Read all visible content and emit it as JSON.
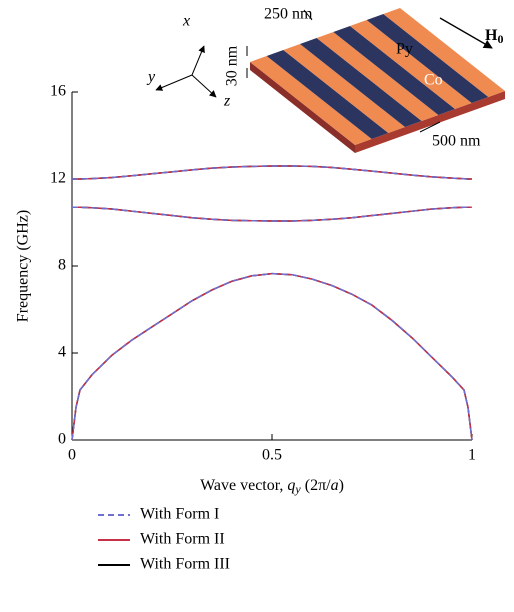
{
  "chart_data": {
    "type": "line",
    "x_label_parts": [
      "Wave vector, ",
      "q",
      "y",
      " (2π/",
      "a",
      ")"
    ],
    "y_label": "Frequency (GHz)",
    "xlim": [
      0,
      1
    ],
    "ylim": [
      0,
      16
    ],
    "xticks": [
      0,
      0.5,
      1
    ],
    "yticks": [
      0,
      4,
      8,
      12,
      16
    ],
    "x": [
      0,
      0.01,
      0.02,
      0.05,
      0.1,
      0.15,
      0.2,
      0.25,
      0.3,
      0.35,
      0.4,
      0.45,
      0.5,
      0.55,
      0.6,
      0.65,
      0.7,
      0.75,
      0.8,
      0.85,
      0.9,
      0.95,
      0.98,
      0.99,
      1
    ],
    "series": [
      {
        "name": "With Form III",
        "color": "#000000",
        "style": "solid",
        "values": [
          [
            0,
            1.5,
            2.3,
            3.0,
            3.9,
            4.6,
            5.2,
            5.8,
            6.4,
            6.9,
            7.3,
            7.55,
            7.65,
            7.6,
            7.4,
            7.1,
            6.7,
            6.2,
            5.5,
            4.7,
            3.8,
            2.9,
            2.3,
            1.5,
            0
          ],
          [
            10.7,
            10.7,
            10.7,
            10.68,
            10.62,
            10.52,
            10.42,
            10.32,
            10.22,
            10.15,
            10.1,
            10.08,
            10.07,
            10.07,
            10.1,
            10.15,
            10.22,
            10.32,
            10.42,
            10.52,
            10.62,
            10.68,
            10.7,
            10.7,
            10.7
          ],
          [
            12.0,
            12.0,
            12.0,
            12.02,
            12.07,
            12.15,
            12.24,
            12.33,
            12.42,
            12.5,
            12.55,
            12.58,
            12.6,
            12.6,
            12.58,
            12.53,
            12.45,
            12.36,
            12.27,
            12.18,
            12.1,
            12.04,
            12.01,
            12.0,
            12.0
          ]
        ]
      },
      {
        "name": "With Form II",
        "color": "#c8304a",
        "style": "solid",
        "values": [
          [
            0,
            1.5,
            2.3,
            3.0,
            3.9,
            4.6,
            5.2,
            5.8,
            6.4,
            6.9,
            7.3,
            7.55,
            7.65,
            7.6,
            7.4,
            7.1,
            6.7,
            6.2,
            5.5,
            4.7,
            3.8,
            2.9,
            2.3,
            1.5,
            0
          ],
          [
            10.7,
            10.7,
            10.7,
            10.68,
            10.62,
            10.52,
            10.42,
            10.32,
            10.22,
            10.15,
            10.1,
            10.08,
            10.07,
            10.07,
            10.1,
            10.15,
            10.22,
            10.32,
            10.42,
            10.52,
            10.62,
            10.68,
            10.7,
            10.7,
            10.7
          ],
          [
            12.0,
            12.0,
            12.0,
            12.02,
            12.07,
            12.15,
            12.24,
            12.33,
            12.42,
            12.5,
            12.55,
            12.58,
            12.6,
            12.6,
            12.58,
            12.53,
            12.45,
            12.36,
            12.27,
            12.18,
            12.1,
            12.04,
            12.01,
            12.0,
            12.0
          ]
        ]
      },
      {
        "name": "With Form I",
        "color": "#6f6fd0",
        "style": "dashed",
        "values": [
          [
            0,
            1.5,
            2.3,
            3.0,
            3.9,
            4.6,
            5.2,
            5.8,
            6.4,
            6.9,
            7.3,
            7.55,
            7.65,
            7.6,
            7.4,
            7.1,
            6.7,
            6.2,
            5.5,
            4.7,
            3.8,
            2.9,
            2.3,
            1.5,
            0
          ],
          [
            10.7,
            10.7,
            10.7,
            10.68,
            10.62,
            10.52,
            10.42,
            10.32,
            10.22,
            10.15,
            10.1,
            10.08,
            10.07,
            10.07,
            10.1,
            10.15,
            10.22,
            10.32,
            10.42,
            10.52,
            10.62,
            10.68,
            10.7,
            10.7,
            10.7
          ],
          [
            12.0,
            12.0,
            12.0,
            12.02,
            12.07,
            12.15,
            12.24,
            12.33,
            12.42,
            12.5,
            12.55,
            12.58,
            12.6,
            12.6,
            12.58,
            12.53,
            12.45,
            12.36,
            12.27,
            12.18,
            12.1,
            12.04,
            12.01,
            12.0,
            12.0
          ]
        ]
      }
    ],
    "legend_order": [
      2,
      1,
      0
    ],
    "inset": {
      "stripe_width": "250 nm",
      "thickness": "30 nm",
      "period": "500 nm",
      "material_a": "Py",
      "material_b": "Co",
      "field_symbol": "H",
      "field_subscript": "0",
      "axis_x": "x",
      "axis_y": "y",
      "axis_z": "z"
    }
  }
}
